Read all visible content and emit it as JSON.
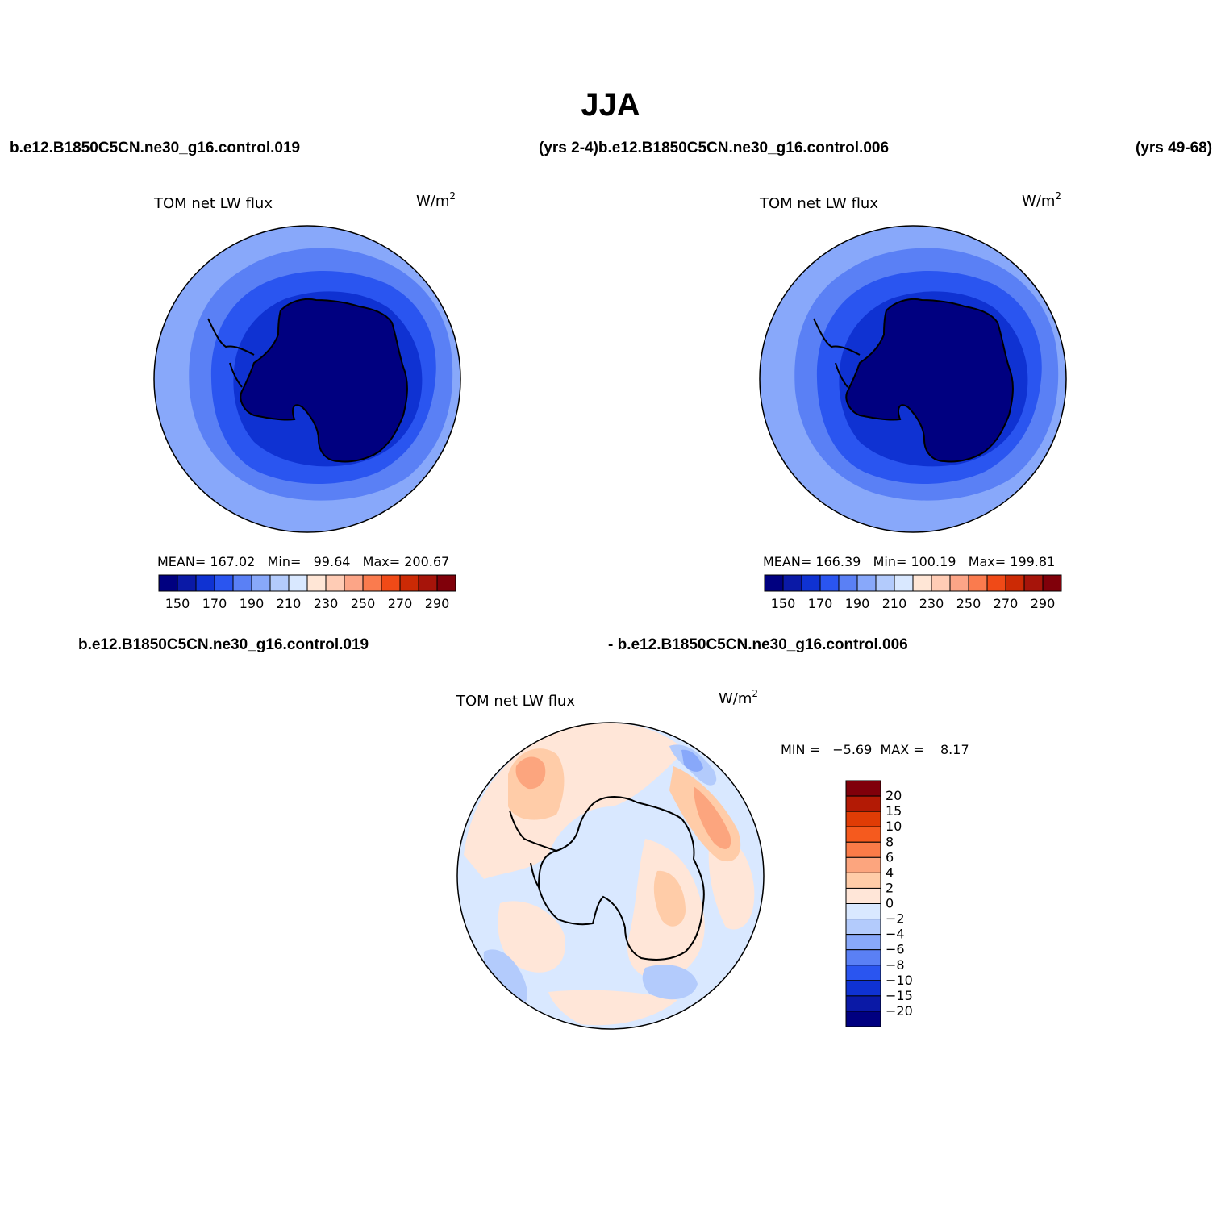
{
  "main_title": "JJA",
  "top_left_header": "b.e12.B1850C5CN.ne30_g16.control.019",
  "top_mid_header": "(yrs 2-4)b.e12.B1850C5CN.ne30_g16.control.006",
  "top_right_header": "(yrs 49-68)",
  "bottom_left_header": "b.e12.B1850C5CN.ne30_g16.control.019",
  "bottom_right_header": "- b.e12.B1850C5CN.ne30_g16.control.006",
  "panels": [
    {
      "variable": "TOM net LW flux",
      "units": "W/m",
      "units_sup": "2",
      "stats": "MEAN= 167.02   Min=   99.64   Max= 200.67"
    },
    {
      "variable": "TOM net LW flux",
      "units": "W/m",
      "units_sup": "2",
      "stats": "MEAN= 166.39   Min= 100.19   Max= 199.81"
    },
    {
      "variable": "TOM net LW flux",
      "units": "W/m",
      "units_sup": "2",
      "stats": "MIN =   −5.69  MAX =    8.17"
    }
  ],
  "abs_colorbar": {
    "colors": [
      "#000080",
      "#0a19a6",
      "#0f32d2",
      "#2a55f0",
      "#5a80f5",
      "#88a8fa",
      "#b3cbfc",
      "#d9e8ff",
      "#ffe6d6",
      "#ffccb5",
      "#fca587",
      "#fa7b4e",
      "#f04a17",
      "#cc2a05",
      "#a6140a",
      "#80000a"
    ],
    "tick_labels": [
      "150",
      "170",
      "190",
      "210",
      "230",
      "250",
      "270",
      "290"
    ]
  },
  "diff_colorbar": {
    "colors": [
      "#80000a",
      "#b31a05",
      "#e03c05",
      "#f55a1e",
      "#fa7b48",
      "#fca57e",
      "#ffcca8",
      "#ffe6d8",
      "#d9e8ff",
      "#b3cbfc",
      "#88a8fa",
      "#5a80f5",
      "#2a55f0",
      "#0f32d2",
      "#0a19a6",
      "#000080"
    ],
    "labels": [
      "20",
      "15",
      "10",
      "8",
      "6",
      "4",
      "2",
      "0",
      "−2",
      "−4",
      "−6",
      "−8",
      "−10",
      "−15",
      "−20"
    ]
  }
}
